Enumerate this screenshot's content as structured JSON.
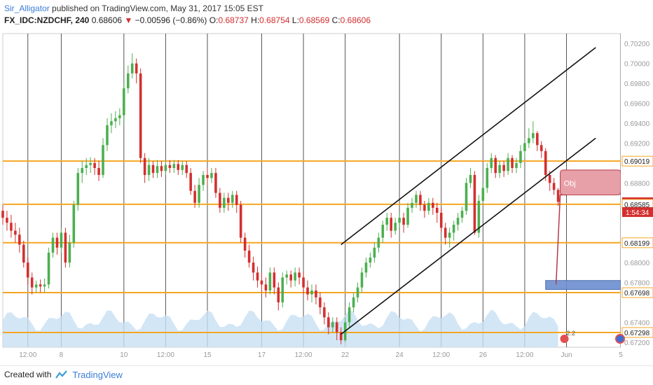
{
  "header": {
    "author": "Sir_Alligator",
    "published": "published on TradingView.com, May 31, 2017 15:05 EST"
  },
  "ohlc": {
    "symbol": "FX_IDC:NZDCHF, 240",
    "last": "0.68606",
    "arrow": "▼",
    "change": "−0.00596 (−0.86%)",
    "o_label": "O:",
    "o": "0.68737",
    "h_label": "H:",
    "h": "0.68754",
    "l_label": "L:",
    "l": "0.68569",
    "c_label": "C:",
    "c": "0.68606"
  },
  "footer": {
    "created_with": "Created with",
    "brand": "TradingView"
  },
  "colors": {
    "up": "#4caf50",
    "down": "#d32f2f",
    "level": "#f5a623",
    "grid": "#555555",
    "volume": "#c8e0f4",
    "price_tag": "#d32f2f"
  },
  "chart_data": {
    "type": "candlestick",
    "ylim": [
      0.6715,
      0.703
    ],
    "x_range": [
      0,
      148
    ],
    "y_ticks": [
      "0.70200",
      "0.70000",
      "0.69800",
      "0.69600",
      "0.69400",
      "0.69200",
      "0.69019",
      "0.68800",
      "0.68606",
      "0.68585",
      "0.68199",
      "0.68000",
      "0.67800",
      "0.67698",
      "0.67400",
      "0.67298",
      "0.67200"
    ],
    "y_tick_values": [
      0.702,
      0.7,
      0.698,
      0.696,
      0.694,
      0.692,
      0.69019,
      0.688,
      0.68606,
      0.68585,
      0.68199,
      0.68,
      0.678,
      0.67698,
      0.674,
      0.67298,
      0.672
    ],
    "highlight_ticks": [
      "0.69019",
      "0.68585",
      "0.68199",
      "0.67698",
      "0.67298"
    ],
    "price_tag": "0.68606",
    "timer_tag": "1:54:34",
    "x_ticks": [
      {
        "label": "12:00",
        "x": 6
      },
      {
        "label": "8",
        "x": 14
      },
      {
        "label": "10",
        "x": 29
      },
      {
        "label": "12:00",
        "x": 39
      },
      {
        "label": "15",
        "x": 49
      },
      {
        "label": "17",
        "x": 62
      },
      {
        "label": "12:00",
        "x": 72
      },
      {
        "label": "22",
        "x": 82
      },
      {
        "label": "24",
        "x": 95
      },
      {
        "label": "12:00",
        "x": 105
      },
      {
        "label": "26",
        "x": 115
      },
      {
        "label": "12:00",
        "x": 125
      },
      {
        "label": "Jun",
        "x": 135
      },
      {
        "label": "5",
        "x": 148
      }
    ],
    "levels": [
      0.69019,
      0.68585,
      0.68199,
      0.67698,
      0.67298
    ],
    "channel": [
      {
        "x1": 81,
        "y1": 0.6818,
        "x2": 142,
        "y2": 0.7016
      },
      {
        "x1": 81,
        "y1": 0.6728,
        "x2": 142,
        "y2": 0.6925
      }
    ],
    "target_box": {
      "x1": 130,
      "x2": 148,
      "y1": 0.6773,
      "y2": 0.6782
    },
    "annotation": "Obj",
    "badge": "2.2",
    "candles": [
      [
        0,
        0.6852,
        0.6845,
        0.6858,
        0.6838
      ],
      [
        1,
        0.6845,
        0.684,
        0.6852,
        0.6832
      ],
      [
        2,
        0.684,
        0.6832,
        0.6848,
        0.6825
      ],
      [
        3,
        0.6832,
        0.6828,
        0.684,
        0.682
      ],
      [
        4,
        0.6828,
        0.6818,
        0.6835,
        0.681
      ],
      [
        5,
        0.6818,
        0.68,
        0.6822,
        0.6795
      ],
      [
        6,
        0.68,
        0.6785,
        0.6805,
        0.6778
      ],
      [
        7,
        0.6785,
        0.6775,
        0.679,
        0.6768
      ],
      [
        8,
        0.6775,
        0.6778,
        0.6782,
        0.677
      ],
      [
        9,
        0.6778,
        0.6776,
        0.6783,
        0.677
      ],
      [
        10,
        0.6776,
        0.6778,
        0.6784,
        0.677
      ],
      [
        11,
        0.6778,
        0.681,
        0.6815,
        0.6774
      ],
      [
        12,
        0.681,
        0.6825,
        0.683,
        0.6805
      ],
      [
        13,
        0.6825,
        0.6815,
        0.683,
        0.6808
      ],
      [
        14,
        0.6815,
        0.683,
        0.6835,
        0.681
      ],
      [
        15,
        0.683,
        0.68,
        0.6835,
        0.6795
      ],
      [
        16,
        0.68,
        0.682,
        0.6828,
        0.6795
      ],
      [
        17,
        0.682,
        0.6858,
        0.6862,
        0.6815
      ],
      [
        18,
        0.6858,
        0.689,
        0.6895,
        0.6852
      ],
      [
        19,
        0.689,
        0.6895,
        0.6902,
        0.688
      ],
      [
        20,
        0.6895,
        0.6898,
        0.6905,
        0.6888
      ],
      [
        21,
        0.6898,
        0.69,
        0.6906,
        0.689
      ],
      [
        22,
        0.69,
        0.6895,
        0.6905,
        0.6888
      ],
      [
        23,
        0.6895,
        0.6888,
        0.6902,
        0.6882
      ],
      [
        24,
        0.6888,
        0.6918,
        0.6925,
        0.6885
      ],
      [
        25,
        0.6918,
        0.6938,
        0.6945,
        0.6912
      ],
      [
        26,
        0.6938,
        0.6942,
        0.695,
        0.693
      ],
      [
        27,
        0.6942,
        0.6945,
        0.6952,
        0.6935
      ],
      [
        28,
        0.6945,
        0.6948,
        0.6955,
        0.6938
      ],
      [
        29,
        0.6948,
        0.6975,
        0.698,
        0.694
      ],
      [
        30,
        0.6975,
        0.699,
        0.6998,
        0.697
      ],
      [
        31,
        0.699,
        0.7,
        0.701,
        0.6985
      ],
      [
        32,
        0.7,
        0.699,
        0.7005,
        0.698
      ],
      [
        33,
        0.699,
        0.6905,
        0.6995,
        0.69
      ],
      [
        34,
        0.6905,
        0.6888,
        0.691,
        0.688
      ],
      [
        35,
        0.6888,
        0.6898,
        0.6905,
        0.6882
      ],
      [
        36,
        0.6898,
        0.689,
        0.6902,
        0.6885
      ],
      [
        37,
        0.689,
        0.6897,
        0.6903,
        0.6885
      ],
      [
        38,
        0.6897,
        0.6892,
        0.6902,
        0.6886
      ],
      [
        39,
        0.6892,
        0.6898,
        0.6903,
        0.6888
      ],
      [
        40,
        0.6898,
        0.6895,
        0.6903,
        0.689
      ],
      [
        41,
        0.6895,
        0.6899,
        0.6903,
        0.689
      ],
      [
        42,
        0.6899,
        0.6893,
        0.6903,
        0.6888
      ],
      [
        43,
        0.6893,
        0.6898,
        0.6902,
        0.6888
      ],
      [
        44,
        0.6898,
        0.689,
        0.6902,
        0.6885
      ],
      [
        45,
        0.689,
        0.6872,
        0.6895,
        0.6868
      ],
      [
        46,
        0.6872,
        0.686,
        0.6878,
        0.6855
      ],
      [
        47,
        0.686,
        0.6878,
        0.6885,
        0.6855
      ],
      [
        48,
        0.6878,
        0.6888,
        0.6892,
        0.6872
      ],
      [
        49,
        0.6888,
        0.6885,
        0.6895,
        0.6878
      ],
      [
        50,
        0.6885,
        0.689,
        0.6895,
        0.688
      ],
      [
        51,
        0.689,
        0.687,
        0.6895,
        0.6865
      ],
      [
        52,
        0.687,
        0.6855,
        0.6875,
        0.685
      ],
      [
        53,
        0.6855,
        0.6865,
        0.687,
        0.685
      ],
      [
        54,
        0.6865,
        0.686,
        0.687,
        0.6852
      ],
      [
        55,
        0.686,
        0.6868,
        0.6872,
        0.6855
      ],
      [
        56,
        0.6868,
        0.6858,
        0.6872,
        0.685
      ],
      [
        57,
        0.6858,
        0.6825,
        0.6862,
        0.682
      ],
      [
        58,
        0.6825,
        0.6812,
        0.683,
        0.6805
      ],
      [
        59,
        0.6812,
        0.68,
        0.6818,
        0.6795
      ],
      [
        60,
        0.68,
        0.679,
        0.6806,
        0.6782
      ],
      [
        61,
        0.679,
        0.6782,
        0.6796,
        0.6775
      ],
      [
        62,
        0.6782,
        0.6778,
        0.679,
        0.677
      ],
      [
        63,
        0.6778,
        0.6772,
        0.6785,
        0.6765
      ],
      [
        64,
        0.6772,
        0.679,
        0.6795,
        0.6768
      ],
      [
        65,
        0.679,
        0.6775,
        0.6795,
        0.6768
      ],
      [
        66,
        0.6775,
        0.676,
        0.678,
        0.6752
      ],
      [
        67,
        0.676,
        0.6785,
        0.679,
        0.6755
      ],
      [
        68,
        0.6785,
        0.6788,
        0.6792,
        0.6778
      ],
      [
        69,
        0.6788,
        0.6782,
        0.6792,
        0.6775
      ],
      [
        70,
        0.6782,
        0.679,
        0.6795,
        0.6776
      ],
      [
        71,
        0.679,
        0.6785,
        0.6795,
        0.6778
      ],
      [
        72,
        0.6785,
        0.6775,
        0.679,
        0.6768
      ],
      [
        73,
        0.6775,
        0.6768,
        0.6782,
        0.6762
      ],
      [
        74,
        0.6768,
        0.6772,
        0.6778,
        0.676
      ],
      [
        75,
        0.6772,
        0.6765,
        0.6778,
        0.6758
      ],
      [
        76,
        0.6765,
        0.6755,
        0.677,
        0.6748
      ],
      [
        77,
        0.6755,
        0.6745,
        0.676,
        0.6738
      ],
      [
        78,
        0.6745,
        0.6735,
        0.675,
        0.6728
      ],
      [
        79,
        0.6735,
        0.674,
        0.6745,
        0.673
      ],
      [
        80,
        0.674,
        0.673,
        0.6745,
        0.6722
      ],
      [
        81,
        0.673,
        0.6722,
        0.6735,
        0.6718
      ],
      [
        82,
        0.6722,
        0.674,
        0.6745,
        0.672
      ],
      [
        83,
        0.674,
        0.6755,
        0.676,
        0.6735
      ],
      [
        84,
        0.6755,
        0.6765,
        0.677,
        0.675
      ],
      [
        85,
        0.6765,
        0.6775,
        0.678,
        0.676
      ],
      [
        86,
        0.6775,
        0.679,
        0.6795,
        0.677
      ],
      [
        87,
        0.679,
        0.68,
        0.6805,
        0.6785
      ],
      [
        88,
        0.68,
        0.6805,
        0.681,
        0.6795
      ],
      [
        89,
        0.6805,
        0.6815,
        0.682,
        0.68
      ],
      [
        90,
        0.6815,
        0.6825,
        0.683,
        0.681
      ],
      [
        91,
        0.6825,
        0.6838,
        0.6842,
        0.682
      ],
      [
        92,
        0.6838,
        0.6845,
        0.685,
        0.6832
      ],
      [
        93,
        0.6845,
        0.6832,
        0.685,
        0.6825
      ],
      [
        94,
        0.6832,
        0.684,
        0.6845,
        0.6828
      ],
      [
        95,
        0.684,
        0.6845,
        0.685,
        0.6835
      ],
      [
        96,
        0.6845,
        0.6838,
        0.685,
        0.683
      ],
      [
        97,
        0.6838,
        0.6855,
        0.686,
        0.6835
      ],
      [
        98,
        0.6855,
        0.686,
        0.6865,
        0.685
      ],
      [
        99,
        0.686,
        0.6868,
        0.6872,
        0.6855
      ],
      [
        100,
        0.6868,
        0.6858,
        0.6872,
        0.6852
      ],
      [
        101,
        0.6858,
        0.6852,
        0.6862,
        0.6845
      ],
      [
        102,
        0.6852,
        0.686,
        0.6865,
        0.6848
      ],
      [
        103,
        0.686,
        0.6855,
        0.6865,
        0.6848
      ],
      [
        104,
        0.6855,
        0.685,
        0.686,
        0.684
      ],
      [
        105,
        0.685,
        0.6835,
        0.6855,
        0.683
      ],
      [
        106,
        0.6835,
        0.6825,
        0.684,
        0.6818
      ],
      [
        107,
        0.6825,
        0.683,
        0.6835,
        0.6815
      ],
      [
        108,
        0.683,
        0.6838,
        0.6842,
        0.6822
      ],
      [
        109,
        0.6838,
        0.6845,
        0.685,
        0.6832
      ],
      [
        110,
        0.6845,
        0.6852,
        0.6856,
        0.684
      ],
      [
        111,
        0.6852,
        0.688,
        0.6885,
        0.6848
      ],
      [
        112,
        0.688,
        0.6888,
        0.6895,
        0.6875
      ],
      [
        113,
        0.6888,
        0.683,
        0.6892,
        0.6828
      ],
      [
        114,
        0.683,
        0.6862,
        0.6868,
        0.6825
      ],
      [
        115,
        0.6862,
        0.6875,
        0.688,
        0.6858
      ],
      [
        116,
        0.6875,
        0.6895,
        0.69,
        0.687
      ],
      [
        117,
        0.6895,
        0.6905,
        0.691,
        0.689
      ],
      [
        118,
        0.6905,
        0.689,
        0.6908,
        0.6885
      ],
      [
        119,
        0.689,
        0.6898,
        0.6902,
        0.6885
      ],
      [
        120,
        0.6898,
        0.6892,
        0.6902,
        0.6886
      ],
      [
        121,
        0.6892,
        0.6905,
        0.691,
        0.6888
      ],
      [
        122,
        0.6905,
        0.6895,
        0.6908,
        0.689
      ],
      [
        123,
        0.6895,
        0.69,
        0.6905,
        0.689
      ],
      [
        124,
        0.69,
        0.6912,
        0.6918,
        0.6895
      ],
      [
        125,
        0.6912,
        0.692,
        0.6925,
        0.6905
      ],
      [
        126,
        0.692,
        0.6925,
        0.6935,
        0.6915
      ],
      [
        127,
        0.6925,
        0.693,
        0.6942,
        0.692
      ],
      [
        128,
        0.693,
        0.6918,
        0.6932,
        0.6912
      ],
      [
        129,
        0.6918,
        0.6912,
        0.6922,
        0.6905
      ],
      [
        130,
        0.6912,
        0.6888,
        0.6915,
        0.6882
      ],
      [
        131,
        0.6888,
        0.688,
        0.6892,
        0.6872
      ],
      [
        132,
        0.688,
        0.6873,
        0.6885,
        0.6868
      ],
      [
        133,
        0.6873,
        0.6861,
        0.6875,
        0.6857
      ]
    ]
  }
}
